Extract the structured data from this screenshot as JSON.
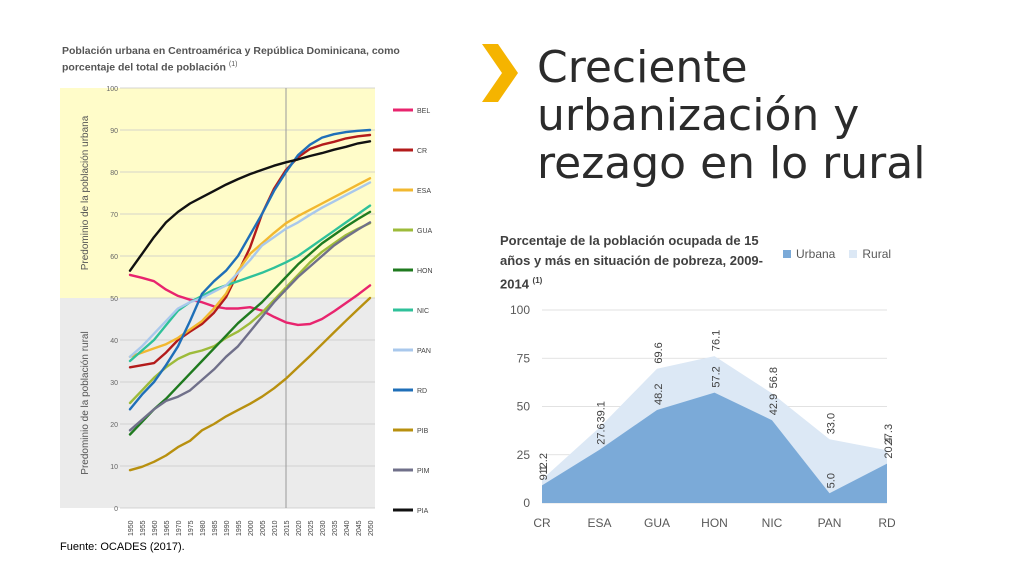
{
  "slide": {
    "title_lines": [
      "Creciente",
      "urbanización y",
      "rezago en lo rural"
    ],
    "source": "Fuente: OCADES (2017).",
    "accent_color": "#F5B400"
  },
  "chart_data": [
    {
      "type": "line",
      "title": "Población urbana en Centroamérica y República Dominicana, como porcentaje del total de población",
      "title_superscript": "(1)",
      "ylim": [
        0,
        100
      ],
      "yticks": [
        0,
        10,
        20,
        30,
        40,
        50,
        60,
        70,
        80,
        90,
        100
      ],
      "band_labels": {
        "upper": "Predominio de la población urbana",
        "lower": "Predominio de la población rural"
      },
      "band_colors": {
        "upper": "#FFFCC9",
        "lower": "#EBEBEB"
      },
      "x": [
        "1950",
        "1955",
        "1960",
        "1965",
        "1970",
        "1975",
        "1980",
        "1985",
        "1990",
        "1995",
        "2000",
        "2005",
        "2010",
        "2015",
        "2020",
        "2025",
        "2030",
        "2035",
        "2040",
        "2045",
        "2050"
      ],
      "vline_at": "2015",
      "legend": "right",
      "series": [
        {
          "name": "BEL",
          "color": "#E8246E",
          "values": [
            55.5,
            54.8,
            54.0,
            52.0,
            50.5,
            49.6,
            49.0,
            48.0,
            47.5,
            47.5,
            47.8,
            47.0,
            45.5,
            44.2,
            43.6,
            43.8,
            45.0,
            46.8,
            48.8,
            50.8,
            53.0
          ]
        },
        {
          "name": "CR",
          "color": "#B31B1B",
          "values": [
            33.5,
            34.0,
            34.5,
            37.0,
            40.0,
            42.0,
            43.8,
            46.5,
            50.2,
            56.0,
            62.0,
            70.0,
            76.0,
            80.5,
            83.5,
            85.5,
            86.5,
            87.2,
            88.0,
            88.5,
            88.8
          ]
        },
        {
          "name": "ESA",
          "color": "#F2B830",
          "values": [
            36.0,
            37.0,
            38.0,
            39.0,
            40.5,
            42.5,
            44.5,
            47.5,
            51.0,
            56.5,
            60.5,
            63.0,
            65.5,
            67.8,
            69.5,
            71.0,
            72.5,
            74.0,
            75.5,
            77.0,
            78.5
          ]
        },
        {
          "name": "GUA",
          "color": "#9DBB3A",
          "values": [
            25.0,
            28.0,
            31.0,
            33.5,
            35.5,
            36.8,
            37.5,
            38.5,
            40.5,
            42.0,
            44.0,
            46.5,
            49.5,
            52.5,
            55.5,
            58.5,
            61.0,
            63.0,
            65.0,
            66.5,
            67.8
          ]
        },
        {
          "name": "HON",
          "color": "#1F7A1F",
          "values": [
            17.5,
            20.5,
            23.5,
            26.0,
            29.0,
            32.0,
            35.0,
            38.0,
            41.0,
            44.0,
            46.5,
            49.0,
            52.0,
            55.0,
            58.0,
            60.5,
            63.0,
            65.0,
            67.0,
            68.8,
            70.5
          ]
        },
        {
          "name": "NIC",
          "color": "#2FC19A",
          "values": [
            35.0,
            37.5,
            40.0,
            43.5,
            47.0,
            49.0,
            50.5,
            52.0,
            53.0,
            54.0,
            55.0,
            56.0,
            57.2,
            58.5,
            60.0,
            62.0,
            64.0,
            66.0,
            68.0,
            70.0,
            72.0
          ]
        },
        {
          "name": "PAN",
          "color": "#A9C8EC",
          "values": [
            36.0,
            38.5,
            41.5,
            44.5,
            47.5,
            49.0,
            50.0,
            51.5,
            53.0,
            56.0,
            59.0,
            62.5,
            64.5,
            66.5,
            68.0,
            69.8,
            71.5,
            73.0,
            74.5,
            76.0,
            77.5
          ]
        },
        {
          "name": "RD",
          "color": "#1F6FB8",
          "values": [
            23.5,
            27.0,
            30.0,
            34.0,
            38.5,
            44.5,
            51.0,
            54.0,
            56.5,
            60.0,
            65.0,
            70.0,
            75.5,
            80.0,
            84.0,
            86.5,
            88.2,
            89.0,
            89.5,
            89.8,
            90.0
          ]
        },
        {
          "name": "PIB",
          "color": "#B8900F",
          "values": [
            9.0,
            9.8,
            11.0,
            12.5,
            14.5,
            16.0,
            18.5,
            20.0,
            21.8,
            23.3,
            24.8,
            26.5,
            28.5,
            30.8,
            33.5,
            36.2,
            39.0,
            41.8,
            44.6,
            47.3,
            50.0
          ]
        },
        {
          "name": "PIM",
          "color": "#70708A",
          "values": [
            18.5,
            21.0,
            23.5,
            25.5,
            26.5,
            28.0,
            30.5,
            33.0,
            36.0,
            38.5,
            42.0,
            45.5,
            49.0,
            52.0,
            55.0,
            57.5,
            60.0,
            62.5,
            64.5,
            66.3,
            68.0
          ]
        },
        {
          "name": "PIA",
          "color": "#111111",
          "values": [
            56.5,
            60.5,
            64.5,
            68.0,
            70.5,
            72.5,
            74.0,
            75.5,
            77.0,
            78.3,
            79.5,
            80.5,
            81.5,
            82.3,
            83.0,
            83.8,
            84.5,
            85.3,
            86.0,
            86.8,
            87.3
          ]
        }
      ]
    },
    {
      "type": "area",
      "title": "Porcentaje de la población ocupada de 15 años y más en situación de pobreza, 2009-2014",
      "title_superscript": "(1)",
      "categories": [
        "CR",
        "ESA",
        "GUA",
        "HON",
        "NIC",
        "PAN",
        "RD"
      ],
      "ylim": [
        0,
        100
      ],
      "yticks": [
        0,
        25,
        50,
        75,
        100
      ],
      "legend": "top-right",
      "series": [
        {
          "name": "Urbana",
          "color": "#7BAAD8",
          "values": [
            9.1,
            27.6,
            48.2,
            57.2,
            42.9,
            5.0,
            20.4
          ]
        },
        {
          "name": "Rural",
          "color": "#DCE8F5",
          "values": [
            12.2,
            39.1,
            69.6,
            76.1,
            56.8,
            33.0,
            27.3
          ]
        }
      ]
    }
  ]
}
